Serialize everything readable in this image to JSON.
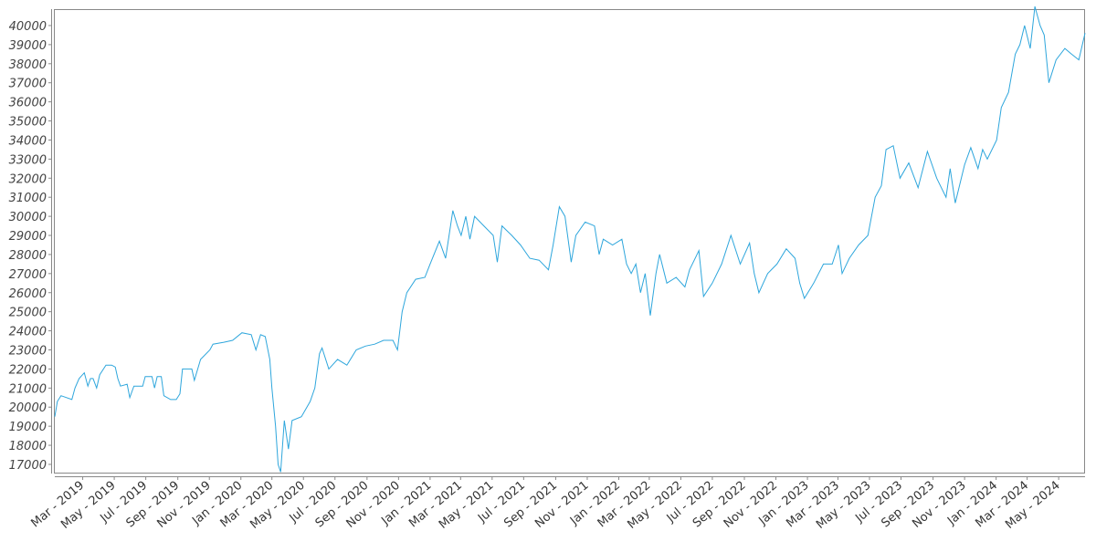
{
  "chart_data": {
    "type": "line",
    "title": "",
    "xlabel": "",
    "ylabel": "",
    "line_color": "#2ea6dc",
    "grid": false,
    "ylim": [
      16520,
      40860
    ],
    "xlim": [
      "2019-01-06",
      "2024-06-21"
    ],
    "y_ticks": [
      17000,
      18000,
      19000,
      20000,
      21000,
      22000,
      23000,
      24000,
      25000,
      26000,
      27000,
      28000,
      29000,
      30000,
      31000,
      32000,
      33000,
      34000,
      35000,
      36000,
      37000,
      38000,
      39000,
      40000
    ],
    "x_ticks": [
      {
        "date": "2019-03-01",
        "label": "Mar - 2019"
      },
      {
        "date": "2019-05-01",
        "label": "May - 2019"
      },
      {
        "date": "2019-07-01",
        "label": "Jul - 2019"
      },
      {
        "date": "2019-09-01",
        "label": "Sep - 2019"
      },
      {
        "date": "2019-11-01",
        "label": "Nov - 2019"
      },
      {
        "date": "2020-01-01",
        "label": "Jan - 2020"
      },
      {
        "date": "2020-03-01",
        "label": "Mar - 2020"
      },
      {
        "date": "2020-05-01",
        "label": "May - 2020"
      },
      {
        "date": "2020-07-01",
        "label": "Jul - 2020"
      },
      {
        "date": "2020-09-01",
        "label": "Sep - 2020"
      },
      {
        "date": "2020-11-01",
        "label": "Nov - 2020"
      },
      {
        "date": "2021-01-01",
        "label": "Jan - 2021"
      },
      {
        "date": "2021-03-01",
        "label": "Mar - 2021"
      },
      {
        "date": "2021-05-01",
        "label": "May - 2021"
      },
      {
        "date": "2021-07-01",
        "label": "Jul - 2021"
      },
      {
        "date": "2021-09-01",
        "label": "Sep - 2021"
      },
      {
        "date": "2021-11-01",
        "label": "Nov - 2021"
      },
      {
        "date": "2022-01-01",
        "label": "Jan - 2022"
      },
      {
        "date": "2022-03-01",
        "label": "Mar - 2022"
      },
      {
        "date": "2022-05-01",
        "label": "May - 2022"
      },
      {
        "date": "2022-07-01",
        "label": "Jul - 2022"
      },
      {
        "date": "2022-09-01",
        "label": "Sep - 2022"
      },
      {
        "date": "2022-11-01",
        "label": "Nov - 2022"
      },
      {
        "date": "2023-01-01",
        "label": "Jan - 2023"
      },
      {
        "date": "2023-03-01",
        "label": "Mar - 2023"
      },
      {
        "date": "2023-05-01",
        "label": "May - 2023"
      },
      {
        "date": "2023-07-01",
        "label": "Jul - 2023"
      },
      {
        "date": "2023-09-01",
        "label": "Sep - 2023"
      },
      {
        "date": "2023-11-01",
        "label": "Nov - 2023"
      },
      {
        "date": "2024-01-01",
        "label": "Jan - 2024"
      },
      {
        "date": "2024-03-01",
        "label": "Mar - 2024"
      },
      {
        "date": "2024-05-01",
        "label": "May - 2024"
      }
    ],
    "series": [
      {
        "points": [
          [
            "2019-01-06",
            19500
          ],
          [
            "2019-01-11",
            20300
          ],
          [
            "2019-01-18",
            20600
          ],
          [
            "2019-02-08",
            20400
          ],
          [
            "2019-02-14",
            21000
          ],
          [
            "2019-02-22",
            21500
          ],
          [
            "2019-03-04",
            21800
          ],
          [
            "2019-03-11",
            21100
          ],
          [
            "2019-03-16",
            21500
          ],
          [
            "2019-03-21",
            21500
          ],
          [
            "2019-03-28",
            21000
          ],
          [
            "2019-04-03",
            21700
          ],
          [
            "2019-04-15",
            22200
          ],
          [
            "2019-04-26",
            22200
          ],
          [
            "2019-05-03",
            22100
          ],
          [
            "2019-05-08",
            21500
          ],
          [
            "2019-05-13",
            21100
          ],
          [
            "2019-05-26",
            21200
          ],
          [
            "2019-05-31",
            20500
          ],
          [
            "2019-06-08",
            21100
          ],
          [
            "2019-06-25",
            21100
          ],
          [
            "2019-06-30",
            21600
          ],
          [
            "2019-07-13",
            21600
          ],
          [
            "2019-07-18",
            21000
          ],
          [
            "2019-07-23",
            21600
          ],
          [
            "2019-07-31",
            21600
          ],
          [
            "2019-08-05",
            20600
          ],
          [
            "2019-08-18",
            20400
          ],
          [
            "2019-08-29",
            20400
          ],
          [
            "2019-09-05",
            20700
          ],
          [
            "2019-09-10",
            22000
          ],
          [
            "2019-09-28",
            22000
          ],
          [
            "2019-10-03",
            21400
          ],
          [
            "2019-10-15",
            22500
          ],
          [
            "2019-11-02",
            23000
          ],
          [
            "2019-11-08",
            23300
          ],
          [
            "2019-11-29",
            23400
          ],
          [
            "2019-12-16",
            23500
          ],
          [
            "2020-01-03",
            23900
          ],
          [
            "2020-01-21",
            23800
          ],
          [
            "2020-01-30",
            23000
          ],
          [
            "2020-02-08",
            23800
          ],
          [
            "2020-02-17",
            23700
          ],
          [
            "2020-02-26",
            22500
          ],
          [
            "2020-03-01",
            21000
          ],
          [
            "2020-03-08",
            19000
          ],
          [
            "2020-03-13",
            17000
          ],
          [
            "2020-03-18",
            16600
          ],
          [
            "2020-03-25",
            19300
          ],
          [
            "2020-04-02",
            17800
          ],
          [
            "2020-04-09",
            19300
          ],
          [
            "2020-04-27",
            19500
          ],
          [
            "2020-05-14",
            20300
          ],
          [
            "2020-05-23",
            21000
          ],
          [
            "2020-06-01",
            22800
          ],
          [
            "2020-06-06",
            23100
          ],
          [
            "2020-06-19",
            22000
          ],
          [
            "2020-07-06",
            22500
          ],
          [
            "2020-07-24",
            22200
          ],
          [
            "2020-08-11",
            23000
          ],
          [
            "2020-08-29",
            23200
          ],
          [
            "2020-09-16",
            23300
          ],
          [
            "2020-10-03",
            23500
          ],
          [
            "2020-10-21",
            23500
          ],
          [
            "2020-10-30",
            23000
          ],
          [
            "2020-11-08",
            25000
          ],
          [
            "2020-11-17",
            26000
          ],
          [
            "2020-12-04",
            26700
          ],
          [
            "2020-12-22",
            26800
          ],
          [
            "2021-01-01",
            27500
          ],
          [
            "2021-01-19",
            28700
          ],
          [
            "2021-01-31",
            27800
          ],
          [
            "2021-02-14",
            30300
          ],
          [
            "2021-02-23",
            29500
          ],
          [
            "2021-03-02",
            29000
          ],
          [
            "2021-03-11",
            30000
          ],
          [
            "2021-03-19",
            28800
          ],
          [
            "2021-03-28",
            30000
          ],
          [
            "2021-04-15",
            29500
          ],
          [
            "2021-05-03",
            29000
          ],
          [
            "2021-05-11",
            27600
          ],
          [
            "2021-05-20",
            29500
          ],
          [
            "2021-06-08",
            29000
          ],
          [
            "2021-06-25",
            28500
          ],
          [
            "2021-07-13",
            27800
          ],
          [
            "2021-07-31",
            27700
          ],
          [
            "2021-08-18",
            27200
          ],
          [
            "2021-08-27",
            28500
          ],
          [
            "2021-09-08",
            30500
          ],
          [
            "2021-09-19",
            30000
          ],
          [
            "2021-10-01",
            27600
          ],
          [
            "2021-10-10",
            29000
          ],
          [
            "2021-10-28",
            29700
          ],
          [
            "2021-11-15",
            29500
          ],
          [
            "2021-11-24",
            28000
          ],
          [
            "2021-12-02",
            28800
          ],
          [
            "2021-12-20",
            28500
          ],
          [
            "2022-01-07",
            28800
          ],
          [
            "2022-01-16",
            27500
          ],
          [
            "2022-01-25",
            27000
          ],
          [
            "2022-02-03",
            27500
          ],
          [
            "2022-02-12",
            26000
          ],
          [
            "2022-02-21",
            27000
          ],
          [
            "2022-03-03",
            24800
          ],
          [
            "2022-03-14",
            27000
          ],
          [
            "2022-03-21",
            28000
          ],
          [
            "2022-04-04",
            26500
          ],
          [
            "2022-04-22",
            26800
          ],
          [
            "2022-05-09",
            26300
          ],
          [
            "2022-05-18",
            27200
          ],
          [
            "2022-06-05",
            28200
          ],
          [
            "2022-06-14",
            25800
          ],
          [
            "2022-07-01",
            26500
          ],
          [
            "2022-07-19",
            27500
          ],
          [
            "2022-08-06",
            29000
          ],
          [
            "2022-08-24",
            27500
          ],
          [
            "2022-09-11",
            28600
          ],
          [
            "2022-09-20",
            27000
          ],
          [
            "2022-09-29",
            26000
          ],
          [
            "2022-10-16",
            27000
          ],
          [
            "2022-11-03",
            27500
          ],
          [
            "2022-11-21",
            28300
          ],
          [
            "2022-12-08",
            27800
          ],
          [
            "2022-12-17",
            26500
          ],
          [
            "2022-12-26",
            25700
          ],
          [
            "2023-01-13",
            26500
          ],
          [
            "2023-02-01",
            27500
          ],
          [
            "2023-02-18",
            27500
          ],
          [
            "2023-03-02",
            28500
          ],
          [
            "2023-03-09",
            27000
          ],
          [
            "2023-03-23",
            27800
          ],
          [
            "2023-04-10",
            28500
          ],
          [
            "2023-04-28",
            29000
          ],
          [
            "2023-05-12",
            31000
          ],
          [
            "2023-05-24",
            31600
          ],
          [
            "2023-06-02",
            33500
          ],
          [
            "2023-06-16",
            33700
          ],
          [
            "2023-06-29",
            32000
          ],
          [
            "2023-07-16",
            32800
          ],
          [
            "2023-08-03",
            31500
          ],
          [
            "2023-08-21",
            33400
          ],
          [
            "2023-09-08",
            32000
          ],
          [
            "2023-09-26",
            31000
          ],
          [
            "2023-10-04",
            32500
          ],
          [
            "2023-10-14",
            30700
          ],
          [
            "2023-11-01",
            32700
          ],
          [
            "2023-11-13",
            33600
          ],
          [
            "2023-11-27",
            32500
          ],
          [
            "2023-12-06",
            33500
          ],
          [
            "2023-12-15",
            33000
          ],
          [
            "2024-01-02",
            34000
          ],
          [
            "2024-01-11",
            35700
          ],
          [
            "2024-01-25",
            36500
          ],
          [
            "2024-02-07",
            38500
          ],
          [
            "2024-02-16",
            39000
          ],
          [
            "2024-02-25",
            40000
          ],
          [
            "2024-03-07",
            38800
          ],
          [
            "2024-03-16",
            41000
          ],
          [
            "2024-03-26",
            40000
          ],
          [
            "2024-04-03",
            39500
          ],
          [
            "2024-04-12",
            37000
          ],
          [
            "2024-04-26",
            38200
          ],
          [
            "2024-05-13",
            38800
          ],
          [
            "2024-05-26",
            38500
          ],
          [
            "2024-06-09",
            38200
          ],
          [
            "2024-06-21",
            39600
          ]
        ]
      }
    ]
  }
}
